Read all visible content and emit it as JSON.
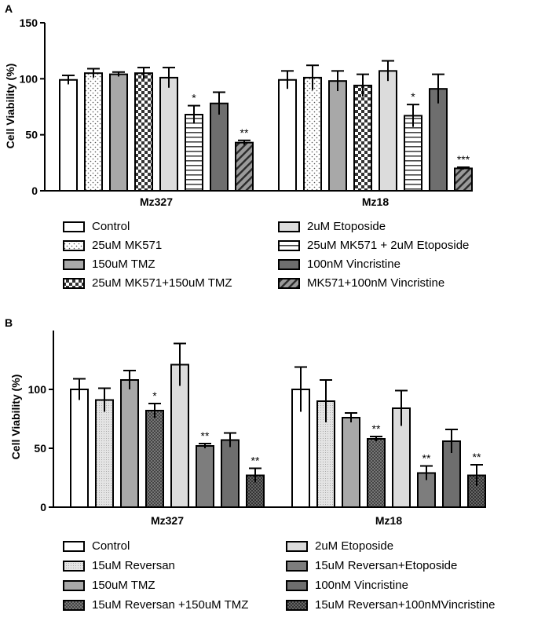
{
  "chart_data": [
    {
      "panel": "A",
      "type": "bar",
      "ylabel": "Cell Viability (%)",
      "ylim": [
        0,
        150
      ],
      "yticks": [
        0,
        50,
        100,
        150
      ],
      "groups": [
        "Mz327",
        "Mz18"
      ],
      "series": [
        {
          "name": "Control",
          "pattern": "white",
          "values": [
            99,
            99
          ],
          "errors": [
            4,
            8
          ],
          "sig": [
            "",
            ""
          ]
        },
        {
          "name": "25uM MK571",
          "pattern": "dots",
          "values": [
            105,
            101
          ],
          "errors": [
            4,
            11
          ],
          "sig": [
            "",
            ""
          ]
        },
        {
          "name": "150uM TMZ",
          "pattern": "gray",
          "values": [
            104,
            98
          ],
          "errors": [
            2,
            9
          ],
          "sig": [
            "",
            ""
          ]
        },
        {
          "name": "25uM MK571+150uM TMZ",
          "pattern": "checker",
          "values": [
            105,
            94
          ],
          "errors": [
            5,
            10
          ],
          "sig": [
            "",
            ""
          ]
        },
        {
          "name": "2uM Etoposide",
          "pattern": "light",
          "values": [
            101,
            107
          ],
          "errors": [
            9,
            9
          ],
          "sig": [
            "",
            ""
          ]
        },
        {
          "name": "25uM MK571 + 2uM Etoposide",
          "pattern": "hstripes",
          "values": [
            68,
            67
          ],
          "errors": [
            8,
            10
          ],
          "sig": [
            "*",
            "*"
          ]
        },
        {
          "name": "100nM Vincristine",
          "pattern": "dark",
          "values": [
            78,
            91
          ],
          "errors": [
            10,
            13
          ],
          "sig": [
            "",
            ""
          ]
        },
        {
          "name": "MK571+100nM Vincristine",
          "pattern": "diag",
          "values": [
            43,
            20
          ],
          "errors": [
            2,
            1
          ],
          "sig": [
            "**",
            "***"
          ]
        }
      ]
    },
    {
      "panel": "B",
      "type": "bar",
      "ylabel": "Cell Viability (%)",
      "ylim": [
        0,
        150
      ],
      "yticks": [
        0,
        50,
        100
      ],
      "groups": [
        "Mz327",
        "Mz18"
      ],
      "series": [
        {
          "name": "Control",
          "pattern": "white",
          "values": [
            100,
            100
          ],
          "errors": [
            9,
            19
          ],
          "sig": [
            "",
            ""
          ]
        },
        {
          "name": "15uM Reversan",
          "pattern": "fine",
          "values": [
            91,
            90
          ],
          "errors": [
            10,
            18
          ],
          "sig": [
            "",
            ""
          ]
        },
        {
          "name": "150uM TMZ",
          "pattern": "gray",
          "values": [
            108,
            76
          ],
          "errors": [
            8,
            4
          ],
          "sig": [
            "",
            ""
          ]
        },
        {
          "name": "15uM Reversan +150uM TMZ",
          "pattern": "cross",
          "values": [
            82,
            58
          ],
          "errors": [
            6,
            2
          ],
          "sig": [
            "*",
            "**"
          ]
        },
        {
          "name": "2uM Etoposide",
          "pattern": "light",
          "values": [
            121,
            84
          ],
          "errors": [
            18,
            15
          ],
          "sig": [
            "",
            ""
          ]
        },
        {
          "name": "15uM Reversan+Etoposide",
          "pattern": "darkgray",
          "values": [
            52,
            29
          ],
          "errors": [
            2,
            6
          ],
          "sig": [
            "**",
            "**"
          ]
        },
        {
          "name": "100nM Vincristine",
          "pattern": "dark",
          "values": [
            57,
            56
          ],
          "errors": [
            6,
            10
          ],
          "sig": [
            "",
            ""
          ]
        },
        {
          "name": "15uM Reversan+100nMVincristine",
          "pattern": "crossdark",
          "values": [
            27,
            27
          ],
          "errors": [
            6,
            9
          ],
          "sig": [
            "**",
            "**"
          ]
        }
      ]
    }
  ]
}
